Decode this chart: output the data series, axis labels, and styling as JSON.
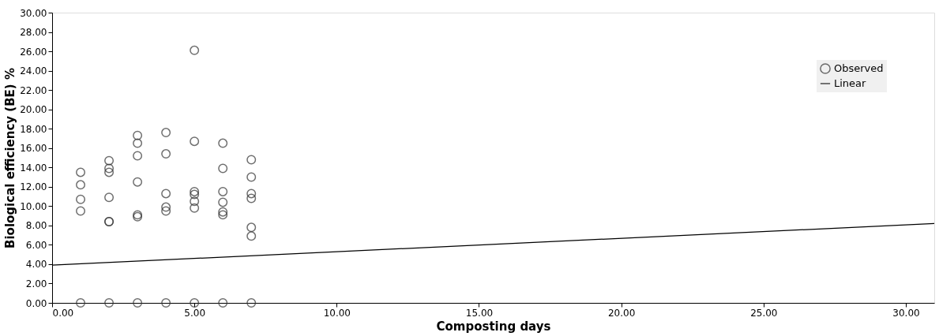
{
  "chart_data": {
    "type": "scatter",
    "xlabel": "Composting days",
    "ylabel": "Biological efficiency (BE) %",
    "xlim": [
      0,
      31
    ],
    "ylim": [
      0,
      30
    ],
    "xticks": [
      {
        "value": 0,
        "label": "0.00"
      },
      {
        "value": 5,
        "label": "5.00"
      },
      {
        "value": 10,
        "label": "10.00"
      },
      {
        "value": 15,
        "label": "15.00"
      },
      {
        "value": 20,
        "label": "20.00"
      },
      {
        "value": 25,
        "label": "25.00"
      },
      {
        "value": 30,
        "label": "30.00"
      }
    ],
    "yticks": [
      {
        "value": 0,
        "label": "0.00"
      },
      {
        "value": 2,
        "label": "2.00"
      },
      {
        "value": 4,
        "label": "4.00"
      },
      {
        "value": 6,
        "label": "6.00"
      },
      {
        "value": 8,
        "label": "8.00"
      },
      {
        "value": 10,
        "label": "10.00"
      },
      {
        "value": 12,
        "label": "12.00"
      },
      {
        "value": 14,
        "label": "14.00"
      },
      {
        "value": 16,
        "label": "16.00"
      },
      {
        "value": 18,
        "label": "18.00"
      },
      {
        "value": 20,
        "label": "20.00"
      },
      {
        "value": 22,
        "label": "22.00"
      },
      {
        "value": 24,
        "label": "24.00"
      },
      {
        "value": 26,
        "label": "26.00"
      },
      {
        "value": 28,
        "label": "28.00"
      },
      {
        "value": 30,
        "label": "30.00"
      }
    ],
    "grid": false,
    "legend": "top right",
    "marker": "circle",
    "series": [
      {
        "name": "Observed",
        "color": "#333333",
        "x": [
          1,
          1,
          1,
          1,
          1,
          2,
          2,
          2,
          2,
          2,
          2,
          2,
          3,
          3,
          3,
          3,
          3,
          3,
          3,
          4,
          4,
          4,
          4,
          4,
          4,
          5,
          5,
          5,
          5,
          5,
          5,
          5,
          6,
          6,
          6,
          6,
          6,
          6,
          6,
          7,
          7,
          7,
          7,
          7,
          7,
          7
        ],
        "values": [
          13.5,
          12.2,
          10.7,
          9.5,
          0,
          14.7,
          13.9,
          13.5,
          10.9,
          8.4,
          8.4,
          0,
          17.3,
          16.5,
          15.2,
          12.5,
          9.1,
          8.9,
          0,
          17.6,
          15.4,
          11.3,
          9.9,
          9.5,
          0,
          26.1,
          16.7,
          11.5,
          11.2,
          10.5,
          9.8,
          0,
          16.5,
          13.9,
          11.5,
          10.4,
          9.4,
          9.1,
          0,
          14.8,
          13.0,
          11.3,
          10.8,
          7.8,
          6.9,
          0
        ]
      },
      {
        "name": "Linear",
        "type": "line",
        "color": "#000000",
        "x": [
          0,
          31
        ],
        "values": [
          3.9,
          8.2
        ],
        "line_style": "solid",
        "marker": "none"
      }
    ]
  }
}
